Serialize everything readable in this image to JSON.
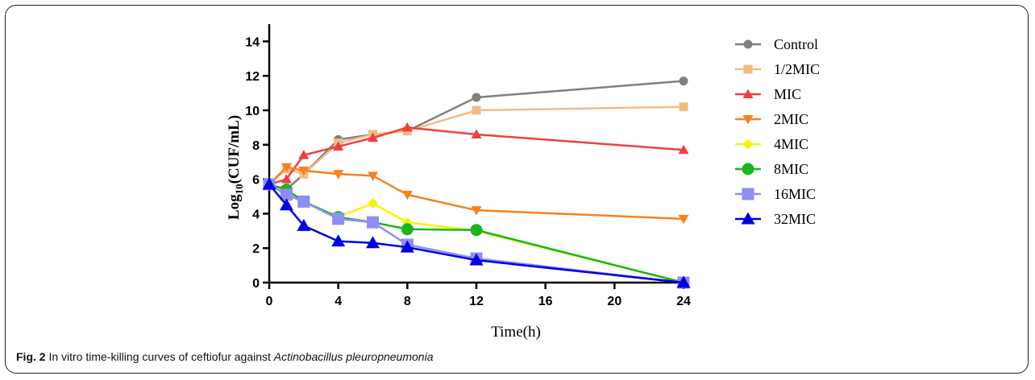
{
  "caption": {
    "label": "Fig. 2",
    "text_before": " In vitro time-killing curves of ceftiofur against ",
    "text_italic": "Actinobacillus pleuropneumonia"
  },
  "chart_data": {
    "type": "line",
    "title": "",
    "xlabel": "Time(h)",
    "ylabel_parts": [
      "Log",
      "10",
      "(CUF/mL)"
    ],
    "xlim": [
      0,
      24
    ],
    "ylim": [
      0,
      15
    ],
    "xticks": [
      0,
      4,
      8,
      12,
      16,
      20,
      24
    ],
    "yticks": [
      0,
      2,
      4,
      6,
      8,
      10,
      12,
      14
    ],
    "legend_position": "right",
    "grid": false,
    "x": [
      0,
      1,
      2,
      4,
      6,
      8,
      12,
      24
    ],
    "series": [
      {
        "name": "Control",
        "color": "#808080",
        "marker": "circle",
        "values": [
          5.7,
          5.4,
          6.3,
          8.3,
          8.6,
          8.8,
          10.75,
          11.7
        ]
      },
      {
        "name": "1/2MIC",
        "color": "#f2bb86",
        "marker": "square",
        "values": [
          5.7,
          6.6,
          6.3,
          8.1,
          8.6,
          8.8,
          10.0,
          10.2
        ]
      },
      {
        "name": "MIC",
        "color": "#ee4040",
        "marker": "triangle-up",
        "values": [
          5.7,
          6.0,
          7.4,
          7.9,
          8.4,
          9.0,
          8.6,
          7.7
        ]
      },
      {
        "name": "2MIC",
        "color": "#f58220",
        "marker": "triangle-down",
        "values": [
          5.7,
          6.7,
          6.5,
          6.3,
          6.2,
          5.1,
          4.2,
          3.7
        ]
      },
      {
        "name": "4MIC",
        "color": "#f5f50a",
        "marker": "diamond",
        "values": [
          5.7,
          5.3,
          4.7,
          3.8,
          4.6,
          3.5,
          3.0,
          0.0
        ]
      },
      {
        "name": "8MIC",
        "color": "#1cb51c",
        "marker": "big-circle",
        "values": [
          5.7,
          5.4,
          4.7,
          3.8,
          3.5,
          3.1,
          3.05,
          0.0
        ]
      },
      {
        "name": "16MIC",
        "color": "#8e8ef5",
        "marker": "big-square",
        "values": [
          5.7,
          5.1,
          4.7,
          3.7,
          3.5,
          2.2,
          1.4,
          0.0
        ]
      },
      {
        "name": "32MIC",
        "color": "#0000e6",
        "marker": "big-triangle",
        "values": [
          5.7,
          4.5,
          3.3,
          2.4,
          2.3,
          2.05,
          1.3,
          0.0
        ]
      }
    ]
  }
}
